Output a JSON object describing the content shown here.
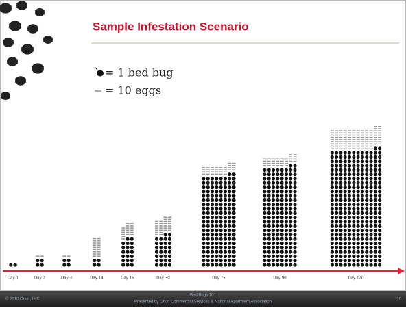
{
  "header": {
    "title": "Sample Infestation Scenario"
  },
  "legend": [
    {
      "label": "= 1 bed bug"
    },
    {
      "label": "= 10 eggs"
    }
  ],
  "days": [
    "Day 1",
    "Day 2",
    "Day 3",
    "Day 14",
    "Day 15",
    "Day 30",
    "Day 75",
    "Day 90",
    "Day 120"
  ],
  "footer": {
    "copyright": "© 2010 Orkin, LLC",
    "course": "Bed Bugs 101",
    "presenter": "Presented by Orkin Commercial Services & National Apartment Association",
    "page": "10"
  }
}
